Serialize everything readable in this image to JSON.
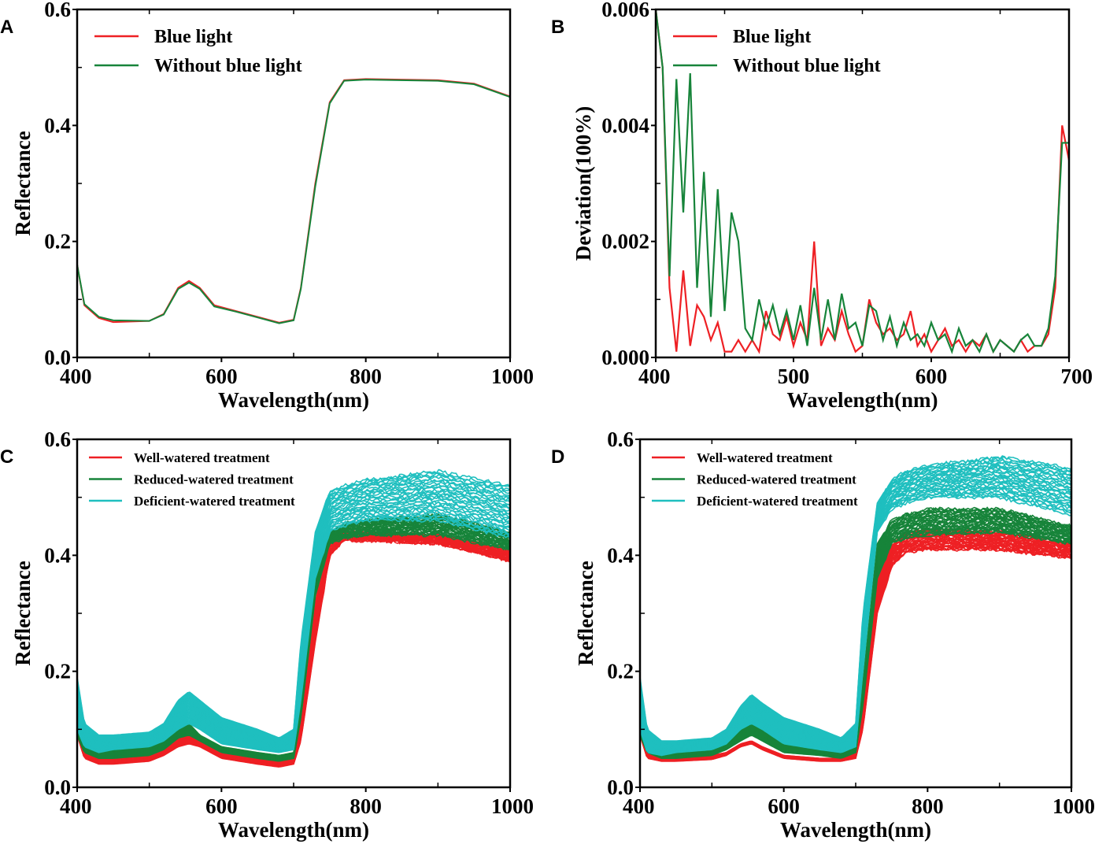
{
  "colors": {
    "red": "#ee2024",
    "green": "#17843a",
    "teal": "#1fbfbf"
  },
  "chart_data": [
    {
      "panel": "A",
      "type": "line",
      "xlabel": "Wavelength(nm)",
      "ylabel": "Reflectance",
      "xlim": [
        400,
        1000
      ],
      "ylim": [
        0,
        0.6
      ],
      "xticks": [
        "400",
        "600",
        "800",
        "1000"
      ],
      "yticks": [
        "0.0",
        "0.2",
        "0.4",
        "0.6"
      ],
      "legend_placement": "top-left",
      "x": [
        400,
        410,
        430,
        450,
        500,
        520,
        540,
        555,
        570,
        590,
        620,
        650,
        680,
        700,
        710,
        730,
        750,
        770,
        800,
        900,
        950,
        1000
      ],
      "series": [
        {
          "name": "Blue light",
          "color": "red",
          "values": [
            0.16,
            0.09,
            0.068,
            0.061,
            0.063,
            0.075,
            0.12,
            0.132,
            0.12,
            0.09,
            0.08,
            0.07,
            0.06,
            0.065,
            0.12,
            0.3,
            0.44,
            0.478,
            0.48,
            0.478,
            0.472,
            0.45
          ]
        },
        {
          "name": "Without blue light",
          "color": "green",
          "values": [
            0.16,
            0.092,
            0.07,
            0.064,
            0.063,
            0.074,
            0.118,
            0.129,
            0.118,
            0.088,
            0.079,
            0.069,
            0.059,
            0.064,
            0.118,
            0.295,
            0.438,
            0.477,
            0.479,
            0.477,
            0.471,
            0.449
          ]
        }
      ]
    },
    {
      "panel": "B",
      "type": "line",
      "xlabel": "Wavelength(nm)",
      "ylabel": "Deviation(100%)",
      "xlim": [
        400,
        700
      ],
      "ylim": [
        0,
        0.006
      ],
      "xticks": [
        "400",
        "500",
        "600",
        "700"
      ],
      "yticks": [
        "0.000",
        "0.002",
        "0.004",
        "0.006"
      ],
      "legend_placement": "top-left",
      "x_start": 400,
      "x_step": 5,
      "series": [
        {
          "name": "Blue light",
          "color": "red",
          "values": [
            0.006,
            0.005,
            0.0012,
            0.0001,
            0.0015,
            0.0002,
            0.0009,
            0.0007,
            0.0003,
            0.0006,
            0.0001,
            0.0001,
            0.0003,
            0.0001,
            0.0003,
            0.0001,
            0.0008,
            0.0004,
            0.0003,
            0.0007,
            0.0002,
            0.0006,
            0.0003,
            0.002,
            0.0002,
            0.0005,
            0.0003,
            0.0008,
            0.0004,
            0.0001,
            0.0002,
            0.001,
            0.0006,
            0.0004,
            0.0005,
            0.0003,
            0.0004,
            0.0008,
            0.0002,
            0.0004,
            0.0001,
            0.0003,
            0.0005,
            0.0002,
            0.0003,
            0.0001,
            0.0003,
            0.0002,
            0.0004,
            0.0001,
            0.0003,
            0.0002,
            0.0001,
            0.0003,
            0.0001,
            0.0002,
            0.0002,
            0.0004,
            0.0012,
            0.004,
            0.0034
          ]
        },
        {
          "name": "Without blue light",
          "color": "green",
          "values": [
            0.006,
            0.005,
            0.0014,
            0.0048,
            0.0025,
            0.0049,
            0.0012,
            0.0032,
            0.0007,
            0.0029,
            0.0008,
            0.0025,
            0.002,
            0.0005,
            0.0003,
            0.001,
            0.0005,
            0.0009,
            0.0004,
            0.0008,
            0.0003,
            0.0009,
            0.0002,
            0.0012,
            0.0003,
            0.001,
            0.0003,
            0.0011,
            0.0005,
            0.0006,
            0.0002,
            0.0009,
            0.0008,
            0.0003,
            0.0007,
            0.0002,
            0.0006,
            0.0003,
            0.0004,
            0.0002,
            0.0006,
            0.0003,
            0.0004,
            0.0001,
            0.0005,
            0.0002,
            0.0003,
            0.0001,
            0.0004,
            0.0001,
            0.0003,
            0.0002,
            0.0001,
            0.0003,
            0.0004,
            0.0002,
            0.0002,
            0.0005,
            0.0014,
            0.0037,
            0.0037
          ]
        }
      ]
    },
    {
      "panel": "C",
      "type": "line",
      "xlabel": "Wavelength(nm)",
      "ylabel": "Reflectance",
      "xlim": [
        400,
        1000
      ],
      "ylim": [
        0,
        0.6
      ],
      "xticks": [
        "400",
        "600",
        "800",
        "1000"
      ],
      "yticks": [
        "0.0",
        "0.2",
        "0.4",
        "0.6"
      ],
      "legend_placement": "top-left",
      "x": [
        400,
        410,
        430,
        450,
        500,
        520,
        540,
        555,
        570,
        600,
        650,
        680,
        700,
        710,
        730,
        750,
        770,
        800,
        900,
        1000
      ],
      "series": [
        {
          "name": "Well-watered treatment",
          "color": "red",
          "min": [
            0.09,
            0.05,
            0.04,
            0.04,
            0.045,
            0.055,
            0.07,
            0.075,
            0.07,
            0.05,
            0.04,
            0.035,
            0.04,
            0.08,
            0.25,
            0.4,
            0.425,
            0.425,
            0.42,
            0.39
          ],
          "max": [
            0.1,
            0.06,
            0.05,
            0.05,
            0.055,
            0.065,
            0.085,
            0.09,
            0.08,
            0.06,
            0.05,
            0.045,
            0.05,
            0.12,
            0.32,
            0.43,
            0.44,
            0.44,
            0.435,
            0.41
          ]
        },
        {
          "name": "Reduced-watered treatment",
          "color": "green",
          "min": [
            0.09,
            0.06,
            0.05,
            0.05,
            0.055,
            0.065,
            0.085,
            0.09,
            0.08,
            0.06,
            0.05,
            0.045,
            0.05,
            0.12,
            0.33,
            0.42,
            0.43,
            0.435,
            0.435,
            0.41
          ],
          "max": [
            0.1,
            0.07,
            0.065,
            0.065,
            0.07,
            0.08,
            0.1,
            0.11,
            0.09,
            0.07,
            0.06,
            0.055,
            0.06,
            0.14,
            0.36,
            0.44,
            0.455,
            0.46,
            0.47,
            0.44
          ]
        },
        {
          "name": "Deficient-watered treatment",
          "color": "teal",
          "min": [
            0.1,
            0.07,
            0.06,
            0.065,
            0.07,
            0.08,
            0.1,
            0.11,
            0.1,
            0.075,
            0.065,
            0.06,
            0.065,
            0.15,
            0.36,
            0.44,
            0.45,
            0.46,
            0.46,
            0.43
          ],
          "max": [
            0.19,
            0.11,
            0.09,
            0.09,
            0.095,
            0.11,
            0.15,
            0.165,
            0.15,
            0.12,
            0.1,
            0.085,
            0.1,
            0.25,
            0.44,
            0.51,
            0.52,
            0.53,
            0.545,
            0.52
          ]
        }
      ]
    },
    {
      "panel": "D",
      "type": "line",
      "xlabel": "Wavelength(nm)",
      "ylabel": "Reflectance",
      "xlim": [
        400,
        1000
      ],
      "ylim": [
        0,
        0.6
      ],
      "xticks": [
        "400",
        "600",
        "800",
        "1000"
      ],
      "yticks": [
        "0.0",
        "0.2",
        "0.4",
        "0.6"
      ],
      "legend_placement": "top-left",
      "x": [
        400,
        410,
        430,
        450,
        500,
        520,
        540,
        555,
        570,
        600,
        650,
        680,
        700,
        710,
        730,
        750,
        770,
        800,
        900,
        1000
      ],
      "series": [
        {
          "name": "Well-watered treatment",
          "color": "red",
          "min": [
            0.09,
            0.05,
            0.045,
            0.045,
            0.048,
            0.055,
            0.07,
            0.075,
            0.065,
            0.05,
            0.045,
            0.045,
            0.05,
            0.1,
            0.3,
            0.38,
            0.405,
            0.41,
            0.41,
            0.395
          ],
          "max": [
            0.1,
            0.06,
            0.05,
            0.05,
            0.055,
            0.06,
            0.075,
            0.08,
            0.07,
            0.055,
            0.05,
            0.05,
            0.06,
            0.14,
            0.36,
            0.42,
            0.44,
            0.445,
            0.44,
            0.42
          ]
        },
        {
          "name": "Reduced-watered treatment",
          "color": "green",
          "min": [
            0.09,
            0.06,
            0.05,
            0.05,
            0.055,
            0.065,
            0.08,
            0.09,
            0.08,
            0.06,
            0.055,
            0.05,
            0.06,
            0.14,
            0.36,
            0.42,
            0.43,
            0.435,
            0.44,
            0.42
          ],
          "max": [
            0.1,
            0.07,
            0.06,
            0.06,
            0.065,
            0.075,
            0.1,
            0.11,
            0.1,
            0.075,
            0.065,
            0.06,
            0.07,
            0.18,
            0.42,
            0.46,
            0.47,
            0.48,
            0.48,
            0.45
          ]
        },
        {
          "name": "Deficient-watered treatment",
          "color": "teal",
          "min": [
            0.1,
            0.06,
            0.055,
            0.06,
            0.065,
            0.075,
            0.1,
            0.11,
            0.1,
            0.075,
            0.065,
            0.06,
            0.07,
            0.2,
            0.44,
            0.48,
            0.49,
            0.5,
            0.5,
            0.47
          ],
          "max": [
            0.19,
            0.1,
            0.08,
            0.08,
            0.085,
            0.1,
            0.14,
            0.16,
            0.145,
            0.12,
            0.1,
            0.085,
            0.11,
            0.3,
            0.49,
            0.53,
            0.545,
            0.555,
            0.57,
            0.55
          ]
        }
      ]
    }
  ]
}
